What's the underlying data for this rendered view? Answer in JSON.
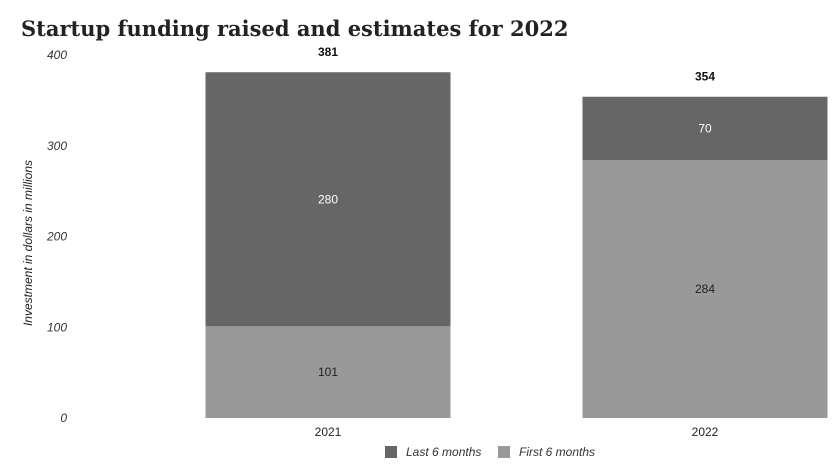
{
  "chart_data": {
    "type": "bar",
    "stacked": true,
    "title": "Startup funding raised and estimates for 2022",
    "ylabel": "Investment in dollars in millions",
    "xlabel": "",
    "ylim": [
      0,
      400
    ],
    "yticks": [
      "0",
      "100",
      "200",
      "300",
      "400"
    ],
    "categories": [
      "2021",
      "2022"
    ],
    "series": [
      {
        "name": "First 6 months",
        "values": [
          101,
          284
        ],
        "color": "#999999",
        "label_color": "#222222"
      },
      {
        "name": "Last 6 months",
        "values": [
          280,
          70
        ],
        "color": "#666666",
        "label_color": "#ffffff"
      }
    ],
    "totals": [
      "381",
      "354"
    ],
    "legend": {
      "placement": "bottom",
      "order": [
        "Last 6 months",
        "First 6 months"
      ]
    },
    "grid": false
  }
}
